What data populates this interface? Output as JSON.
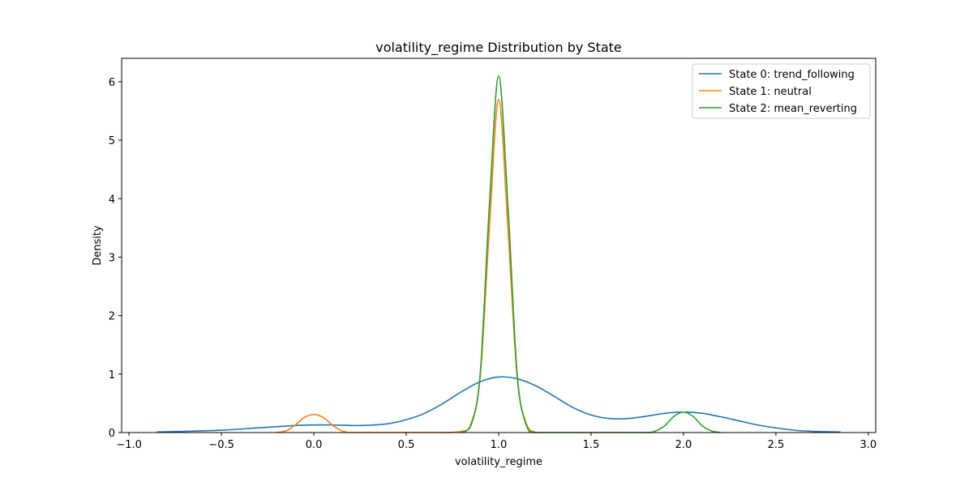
{
  "chart_data": {
    "type": "line",
    "title": "volatility_regime Distribution by State",
    "xlabel": "volatility_regime",
    "ylabel": "Density",
    "xlim": [
      -1.04,
      3.04
    ],
    "ylim": [
      0,
      6.4
    ],
    "xticks": [
      -1.0,
      -0.5,
      0.0,
      0.5,
      1.0,
      1.5,
      2.0,
      2.5,
      3.0
    ],
    "xtick_labels": [
      "−1.0",
      "−0.5",
      "0.0",
      "0.5",
      "1.0",
      "1.5",
      "2.0",
      "2.5",
      "3.0"
    ],
    "yticks": [
      0,
      1,
      2,
      3,
      4,
      5,
      6
    ],
    "ytick_labels": [
      "0",
      "1",
      "2",
      "3",
      "4",
      "5",
      "6"
    ],
    "grid": false,
    "legend_position": "top-right",
    "series": [
      {
        "name": "State 0: trend_following",
        "color": "#1f77b4",
        "x": [
          -0.85,
          -0.7,
          -0.5,
          -0.3,
          -0.1,
          0.0,
          0.1,
          0.25,
          0.4,
          0.5,
          0.6,
          0.7,
          0.8,
          0.9,
          1.0,
          1.1,
          1.2,
          1.3,
          1.4,
          1.5,
          1.6,
          1.7,
          1.8,
          1.9,
          2.0,
          2.1,
          2.2,
          2.3,
          2.4,
          2.5,
          2.6,
          2.7,
          2.85
        ],
        "y": [
          0.01,
          0.02,
          0.04,
          0.08,
          0.12,
          0.13,
          0.13,
          0.12,
          0.15,
          0.22,
          0.33,
          0.5,
          0.7,
          0.87,
          0.95,
          0.92,
          0.8,
          0.62,
          0.43,
          0.3,
          0.24,
          0.24,
          0.28,
          0.33,
          0.35,
          0.33,
          0.27,
          0.2,
          0.13,
          0.08,
          0.04,
          0.02,
          0.01
        ]
      },
      {
        "name": "State 1: neutral",
        "color": "#ff7f0e",
        "x": [
          -0.2,
          -0.15,
          -0.1,
          -0.05,
          0.0,
          0.05,
          0.1,
          0.15,
          0.2,
          0.3,
          0.5,
          0.7,
          0.8,
          0.85,
          0.9,
          0.95,
          1.0,
          1.05,
          1.1,
          1.15,
          1.2
        ],
        "y": [
          0.0,
          0.03,
          0.13,
          0.26,
          0.31,
          0.26,
          0.13,
          0.03,
          0.0,
          0.0,
          0.0,
          0.0,
          0.02,
          0.15,
          0.95,
          3.5,
          5.7,
          3.5,
          0.95,
          0.15,
          0.0
        ]
      },
      {
        "name": "State 2: mean_reverting",
        "color": "#2ca02c",
        "x": [
          0.8,
          0.85,
          0.9,
          0.95,
          1.0,
          1.05,
          1.1,
          1.15,
          1.2,
          1.4,
          1.6,
          1.8,
          1.85,
          1.9,
          1.95,
          2.0,
          2.05,
          2.1,
          2.15,
          2.2
        ],
        "y": [
          0.0,
          0.12,
          1.0,
          3.9,
          6.1,
          3.9,
          1.0,
          0.12,
          0.0,
          0.0,
          0.0,
          0.0,
          0.03,
          0.12,
          0.28,
          0.35,
          0.28,
          0.12,
          0.03,
          0.0
        ]
      }
    ]
  }
}
